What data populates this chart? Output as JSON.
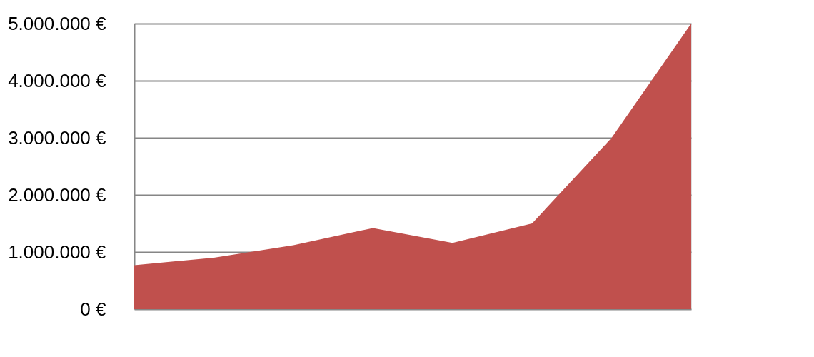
{
  "chart_data": {
    "type": "area",
    "categories": [
      null,
      null,
      null,
      null,
      null,
      null,
      null,
      null
    ],
    "series": [
      {
        "color": "#c0504d",
        "values": [
          770000,
          900000,
          1120000,
          1420000,
          1160000,
          1500000,
          3000000,
          5000000
        ]
      }
    ],
    "ylim": [
      0,
      5000000
    ],
    "yticks": [
      {
        "value": 0,
        "label": "0 €"
      },
      {
        "value": 1000000,
        "label": "1.000.000 €"
      },
      {
        "value": 2000000,
        "label": "2.000.000 €"
      },
      {
        "value": 3000000,
        "label": "3.000.000 €"
      },
      {
        "value": 4000000,
        "label": "4.000.000 €"
      },
      {
        "value": 5000000,
        "label": "5.000.000 €"
      }
    ],
    "grid": "y",
    "tick_labels": "y"
  }
}
